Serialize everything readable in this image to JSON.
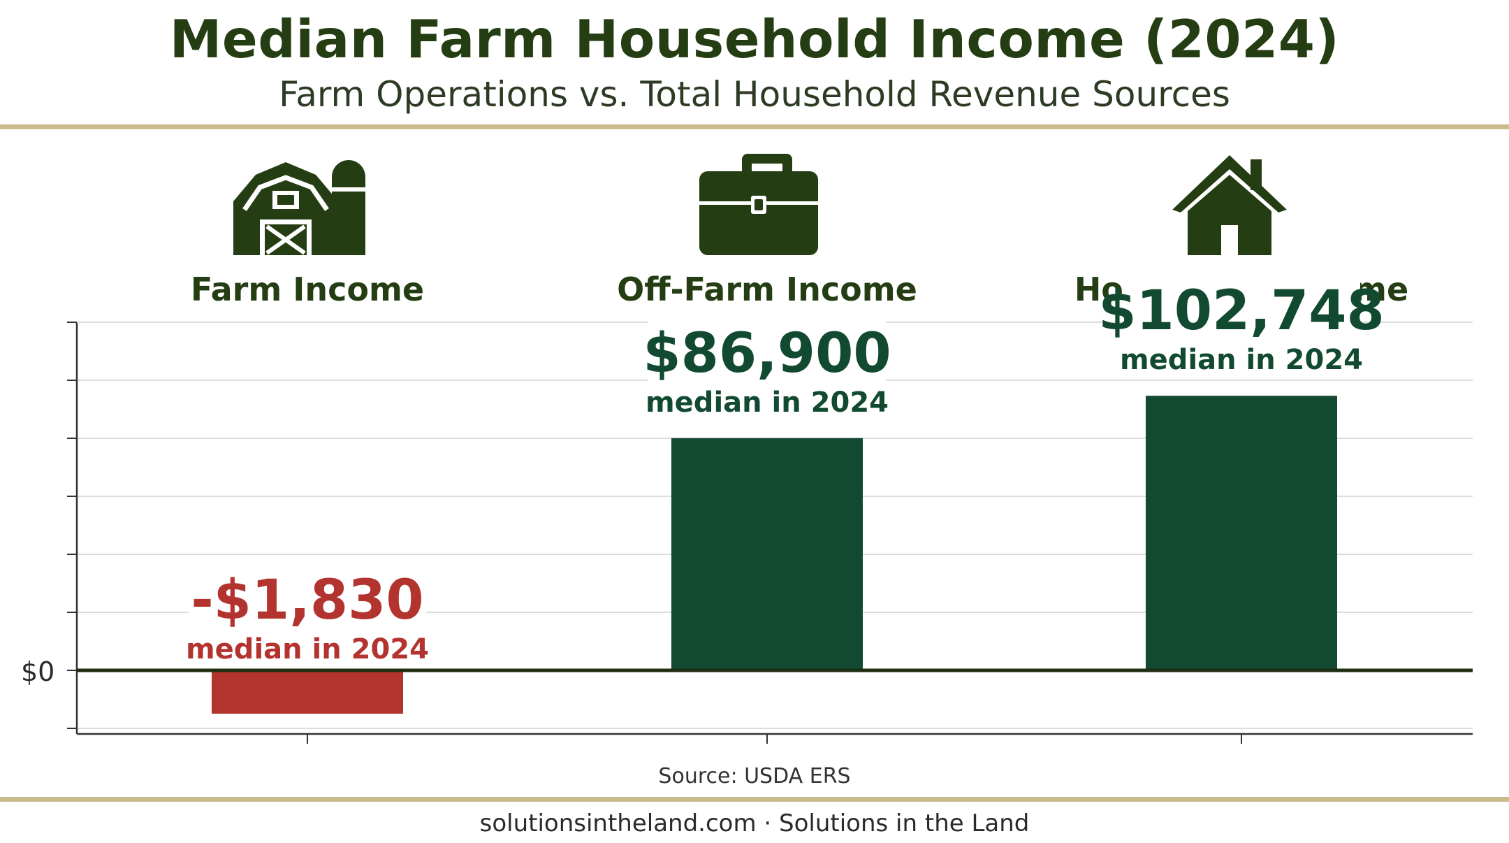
{
  "title": "Median Farm Household Income (2024)",
  "subtitle": "Farm Operations vs. Total Household Revenue Sources",
  "source": "Source: USDA ERS",
  "footer": "solutionsintheland.com · Solutions in the Land",
  "colors": {
    "title": "#243d12",
    "positive": "#124a31",
    "negative": "#b3332f",
    "icon": "#243d12",
    "rule": "#c9bc8a"
  },
  "chart_data": {
    "type": "bar",
    "categories": [
      "Farm Income",
      "Off-Farm Income",
      "Household Income"
    ],
    "values": [
      -1830,
      86900,
      102748
    ],
    "value_labels": [
      "-$1,830",
      "$86,900",
      "$102,748"
    ],
    "value_sublabels": [
      "median in 2024",
      "median in 2024",
      "median in 2024"
    ],
    "icons": [
      "barn-silo-icon",
      "briefcase-icon",
      "house-icon"
    ],
    "y_tick_label": "$0",
    "ylim": [
      -15000,
      130000
    ],
    "grid": true,
    "legend": "none"
  }
}
